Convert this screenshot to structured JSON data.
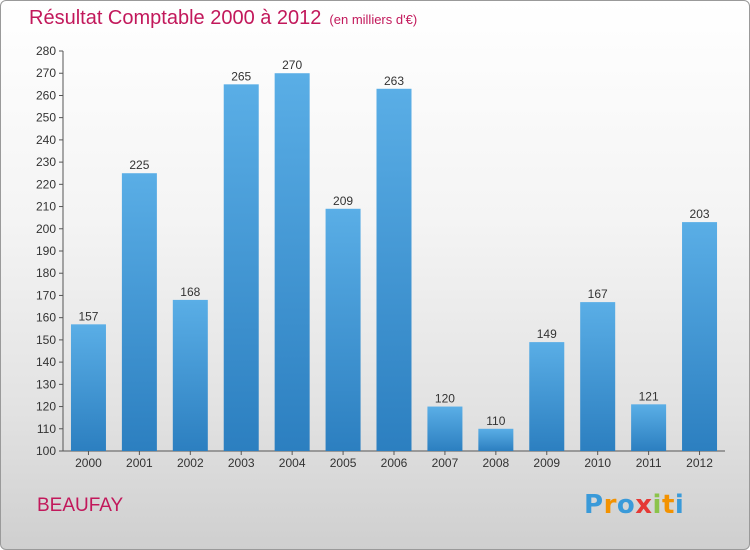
{
  "chart_data": {
    "type": "bar",
    "title": "Résultat Comptable 2000 à 2012",
    "subtitle": "(en milliers d'€)",
    "categories": [
      "2000",
      "2001",
      "2002",
      "2003",
      "2004",
      "2005",
      "2006",
      "2007",
      "2008",
      "2009",
      "2010",
      "2011",
      "2012"
    ],
    "values": [
      157,
      225,
      168,
      265,
      270,
      209,
      263,
      120,
      110,
      149,
      167,
      121,
      203
    ],
    "ylim": [
      100,
      280
    ],
    "ytick_step": 10,
    "xlabel": "",
    "ylabel": "",
    "grid": false,
    "bar_color_light": "#5aaee6",
    "bar_color_dark": "#2c7fc0"
  },
  "commune": "BEAUFAY",
  "logo": {
    "letters": [
      "P",
      "r",
      "o",
      "x",
      "i",
      "t",
      "i"
    ],
    "colors": [
      "#3a9ad9",
      "#f39200",
      "#3a9ad9",
      "#e53935",
      "#8bc34a",
      "#f39200",
      "#3a9ad9"
    ]
  }
}
